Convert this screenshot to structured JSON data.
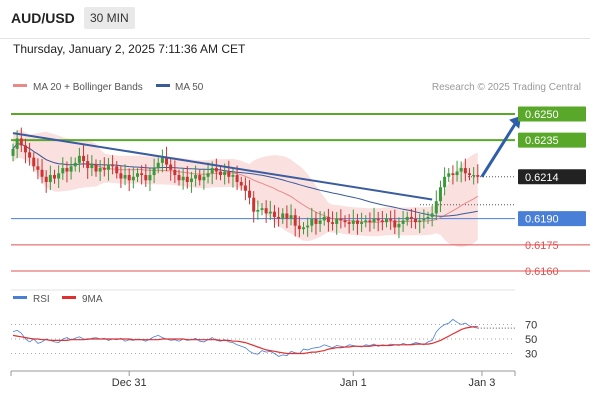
{
  "header": {
    "symbol": "AUD/USD",
    "timeframe": "30 MIN",
    "datetime": "Thursday, January 2, 2025 7:11:36 AM CET"
  },
  "legend": {
    "ma20": "MA 20 + Bollinger Bands",
    "ma50": "MA 50",
    "credit": "Research © 2025 Trading Central",
    "rsi": "RSI",
    "rsi_ma": "9MA"
  },
  "colors": {
    "green": "#5aa82a",
    "blue": "#4a7fd8",
    "red": "#e05050",
    "candle_up": "#3a9a3a",
    "candle_down": "#cc3333",
    "ma20": "#e88a8a",
    "ma50": "#3a5a9a",
    "band_fill": "#fbe0e0"
  },
  "chart_data": {
    "type": "candlestick",
    "price_range": [
      0.6152,
      0.6258
    ],
    "levels": [
      {
        "label": "0.6250",
        "value": 0.625,
        "color": "#5aa82a",
        "kind": "resistance"
      },
      {
        "label": "0.6235",
        "value": 0.6235,
        "color": "#5aa82a",
        "kind": "resistance"
      },
      {
        "label": "0.6214",
        "value": 0.6214,
        "color": "#222222",
        "kind": "last"
      },
      {
        "label": "0.6190",
        "value": 0.619,
        "color": "#4a7fd8",
        "kind": "pivot"
      },
      {
        "label": "0.6175",
        "value": 0.6175,
        "color": "#e05050",
        "kind": "support"
      },
      {
        "label": "0.6160",
        "value": 0.616,
        "color": "#e05050",
        "kind": "support"
      }
    ],
    "x_ticks": [
      {
        "label": "Dec 31",
        "index": 28
      },
      {
        "label": "Jan 1",
        "index": 82
      },
      {
        "label": "Jan 3",
        "index": 113
      }
    ],
    "trendline": {
      "from": {
        "index": 0,
        "value": 0.6239
      },
      "to": {
        "index": 101,
        "value": 0.6201
      }
    },
    "forecast_arrow": {
      "from": {
        "index": 112,
        "value": 0.6214
      },
      "to": {
        "index": 121,
        "value": 0.6249
      }
    },
    "candles": {
      "close": [
        0.623,
        0.6236,
        0.6232,
        0.6228,
        0.6225,
        0.622,
        0.6218,
        0.6214,
        0.6211,
        0.6215,
        0.6213,
        0.6216,
        0.6219,
        0.6217,
        0.622,
        0.6222,
        0.6226,
        0.6223,
        0.6219,
        0.6221,
        0.6217,
        0.6219,
        0.6218,
        0.6221,
        0.622,
        0.6216,
        0.6213,
        0.6215,
        0.6212,
        0.6214,
        0.6216,
        0.6215,
        0.6212,
        0.6215,
        0.6219,
        0.6222,
        0.6225,
        0.6221,
        0.6218,
        0.6215,
        0.6212,
        0.6214,
        0.6211,
        0.6213,
        0.6215,
        0.6212,
        0.6214,
        0.6216,
        0.6219,
        0.6217,
        0.6215,
        0.6217,
        0.6214,
        0.6215,
        0.6211,
        0.6209,
        0.6206,
        0.6202,
        0.6194,
        0.6195,
        0.6196,
        0.6193,
        0.6194,
        0.6191,
        0.619,
        0.6193,
        0.619,
        0.6192,
        0.6186,
        0.6184,
        0.6185,
        0.6186,
        0.619,
        0.6187,
        0.6189,
        0.6191,
        0.6188,
        0.6187,
        0.619,
        0.6189,
        0.6188,
        0.6187,
        0.6189,
        0.6187,
        0.6188,
        0.6189,
        0.6188,
        0.619,
        0.6189,
        0.6188,
        0.619,
        0.6189,
        0.6185,
        0.6187,
        0.6189,
        0.6191,
        0.619,
        0.6188,
        0.6189,
        0.619,
        0.6191,
        0.6193,
        0.62,
        0.6208,
        0.6214,
        0.6216,
        0.6215,
        0.6217,
        0.6219,
        0.6216,
        0.6215,
        0.6215,
        0.6214
      ],
      "open": [
        0.6226,
        0.623,
        0.6236,
        0.6232,
        0.6228,
        0.6225,
        0.622,
        0.6218,
        0.6214,
        0.6211,
        0.6215,
        0.6213,
        0.6216,
        0.6219,
        0.6217,
        0.622,
        0.6222,
        0.6226,
        0.6223,
        0.6219,
        0.6221,
        0.6217,
        0.6219,
        0.6218,
        0.6221,
        0.622,
        0.6216,
        0.6213,
        0.6215,
        0.6212,
        0.6214,
        0.6216,
        0.6215,
        0.6212,
        0.6215,
        0.6219,
        0.6222,
        0.6225,
        0.6221,
        0.6218,
        0.6215,
        0.6212,
        0.6214,
        0.6211,
        0.6213,
        0.6215,
        0.6212,
        0.6214,
        0.6216,
        0.6219,
        0.6217,
        0.6215,
        0.6217,
        0.6214,
        0.6215,
        0.6211,
        0.6209,
        0.6206,
        0.6202,
        0.6194,
        0.6195,
        0.6196,
        0.6193,
        0.6194,
        0.6191,
        0.619,
        0.6193,
        0.619,
        0.6192,
        0.6186,
        0.6184,
        0.6185,
        0.6186,
        0.619,
        0.6187,
        0.6189,
        0.6191,
        0.6188,
        0.6187,
        0.619,
        0.6189,
        0.6188,
        0.6187,
        0.6189,
        0.6187,
        0.6188,
        0.6189,
        0.6188,
        0.619,
        0.6189,
        0.6188,
        0.619,
        0.6189,
        0.6185,
        0.6187,
        0.6189,
        0.6191,
        0.619,
        0.6188,
        0.6189,
        0.619,
        0.6191,
        0.6193,
        0.62,
        0.6208,
        0.6214,
        0.6216,
        0.6215,
        0.6217,
        0.6219,
        0.6216,
        0.6215,
        0.6215
      ]
    },
    "rsi": {
      "range": [
        10,
        90
      ],
      "ticks": [
        70,
        50,
        30
      ],
      "values": [
        60,
        62,
        58,
        50,
        46,
        50,
        44,
        46,
        50,
        48,
        46,
        45,
        50,
        52,
        49,
        51,
        53,
        50,
        49,
        51,
        52,
        50,
        51,
        48,
        50,
        49,
        51,
        47,
        49,
        48,
        50,
        49,
        47,
        50,
        53,
        55,
        52,
        50,
        48,
        49,
        47,
        50,
        48,
        49,
        51,
        47,
        46,
        49,
        52,
        48,
        47,
        49,
        46,
        45,
        42,
        40,
        38,
        33,
        30,
        29,
        34,
        32,
        33,
        30,
        26,
        28,
        27,
        33,
        31,
        30,
        36,
        35,
        37,
        38,
        39,
        42,
        40,
        38,
        41,
        40,
        39,
        42,
        41,
        40,
        39,
        42,
        41,
        43,
        40,
        42,
        41,
        43,
        42,
        41,
        44,
        42,
        43,
        45,
        44,
        42,
        46,
        48,
        60,
        66,
        70,
        72,
        77,
        73,
        70,
        72,
        68,
        66,
        65
      ],
      "ma9": [
        55,
        54,
        53,
        52,
        51,
        50,
        50,
        49,
        49,
        48,
        48,
        48,
        48,
        48,
        49,
        49,
        49,
        49,
        50,
        50,
        50,
        50,
        50,
        50,
        50,
        50,
        50,
        50,
        50,
        49,
        49,
        49,
        49,
        49,
        49,
        49,
        50,
        50,
        50,
        50,
        50,
        50,
        49,
        49,
        49,
        49,
        49,
        49,
        49,
        49,
        48,
        48,
        48,
        47,
        47,
        46,
        45,
        43,
        41,
        39,
        37,
        35,
        34,
        33,
        32,
        31,
        30,
        30,
        30,
        30,
        30,
        31,
        32,
        32,
        33,
        34,
        36,
        37,
        38,
        38,
        39,
        39,
        40,
        40,
        40,
        40,
        40,
        41,
        41,
        41,
        41,
        41,
        42,
        42,
        42,
        42,
        42,
        43,
        43,
        43,
        43,
        44,
        46,
        48,
        51,
        54,
        57,
        60,
        63,
        65,
        66,
        67,
        67
      ]
    }
  }
}
